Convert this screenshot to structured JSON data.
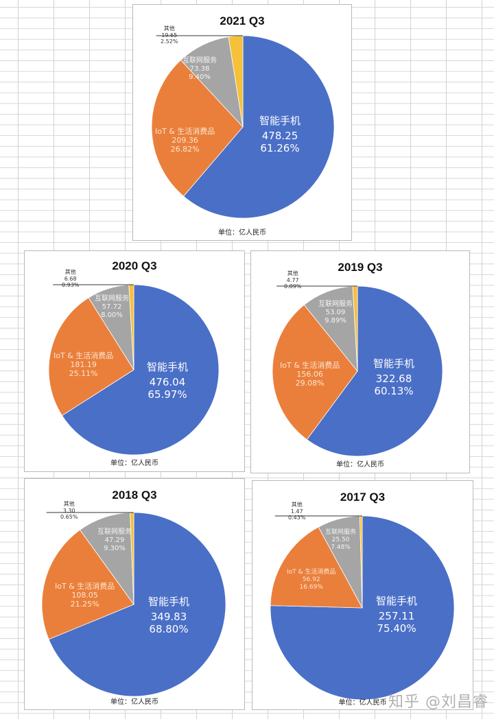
{
  "colors": {
    "smartphone": "#4a6fc7",
    "iot": "#ea7f3b",
    "internet": "#a5a5a5",
    "other": "#f5c03a"
  },
  "unit_label": "单位：亿人民币",
  "watermark": "知乎 @刘昌睿",
  "chart_data": [
    {
      "type": "pie",
      "title": "2021 Q3",
      "unit": "单位：亿人民币",
      "categories": [
        "智能手机",
        "IoT & 生活消费品",
        "互联网服务",
        "其他"
      ],
      "values": [
        478.25,
        209.36,
        73.38,
        19.65
      ],
      "percentages": [
        "61.26%",
        "26.82%",
        "9.40%",
        "2.52%"
      ]
    },
    {
      "type": "pie",
      "title": "2020 Q3",
      "unit": "单位：亿人民币",
      "categories": [
        "智能手机",
        "IoT & 生活消费品",
        "互联网服务",
        "其他"
      ],
      "values": [
        476.04,
        181.19,
        57.72,
        6.68
      ],
      "percentages": [
        "65.97%",
        "25.11%",
        "8.00%",
        "0.93%"
      ]
    },
    {
      "type": "pie",
      "title": "2019 Q3",
      "unit": "单位：亿人民币",
      "categories": [
        "智能手机",
        "IoT & 生活消费品",
        "互联网服务",
        "其他"
      ],
      "values": [
        322.68,
        156.06,
        53.09,
        4.77
      ],
      "percentages": [
        "60.13%",
        "29.08%",
        "9.89%",
        "0.89%"
      ]
    },
    {
      "type": "pie",
      "title": "2018 Q3",
      "unit": "单位：亿人民币",
      "categories": [
        "智能手机",
        "IoT & 生活消费品",
        "互联网服务",
        "其他"
      ],
      "values": [
        349.83,
        108.05,
        47.29,
        3.3
      ],
      "percentages": [
        "68.80%",
        "21.25%",
        "9.30%",
        "0.65%"
      ]
    },
    {
      "type": "pie",
      "title": "2017 Q3",
      "unit": "单位：亿人民币",
      "categories": [
        "智能手机",
        "IoT & 生活消费品",
        "互联网服务",
        "其他"
      ],
      "values": [
        257.11,
        56.92,
        25.5,
        1.47
      ],
      "percentages": [
        "75.40%",
        "16.69%",
        "7.48%",
        "0.43%"
      ]
    }
  ],
  "charts": [
    {
      "title": "2021 Q3",
      "slices": {
        "phone": {
          "label": "智能手机",
          "value": "478.25",
          "pct": "61.26%"
        },
        "iot": {
          "label": "IoT & 生活消费品",
          "value": "209.36",
          "pct": "26.82%"
        },
        "net": {
          "label": "互联网服务",
          "value": "73.38",
          "pct": "9.40%"
        },
        "other": {
          "label": "其他",
          "value": "19.65",
          "pct": "2.52%"
        }
      }
    },
    {
      "title": "2020 Q3",
      "slices": {
        "phone": {
          "label": "智能手机",
          "value": "476.04",
          "pct": "65.97%"
        },
        "iot": {
          "label": "IoT & 生活消费品",
          "value": "181.19",
          "pct": "25.11%"
        },
        "net": {
          "label": "互联网服务",
          "value": "57.72",
          "pct": "8.00%"
        },
        "other": {
          "label": "其他",
          "value": "6.68",
          "pct": "0.93%"
        }
      }
    },
    {
      "title": "2019 Q3",
      "slices": {
        "phone": {
          "label": "智能手机",
          "value": "322.68",
          "pct": "60.13%"
        },
        "iot": {
          "label": "IoT & 生活消费品",
          "value": "156.06",
          "pct": "29.08%"
        },
        "net": {
          "label": "互联网服务",
          "value": "53.09",
          "pct": "9.89%"
        },
        "other": {
          "label": "其他",
          "value": "4.77",
          "pct": "0.89%"
        }
      }
    },
    {
      "title": "2018 Q3",
      "slices": {
        "phone": {
          "label": "智能手机",
          "value": "349.83",
          "pct": "68.80%"
        },
        "iot": {
          "label": "IoT & 生活消费品",
          "value": "108.05",
          "pct": "21.25%"
        },
        "net": {
          "label": "互联网服务",
          "value": "47.29",
          "pct": "9.30%"
        },
        "other": {
          "label": "其他",
          "value": "3.30",
          "pct": "0.65%"
        }
      }
    },
    {
      "title": "2017 Q3",
      "slices": {
        "phone": {
          "label": "智能手机",
          "value": "257.11",
          "pct": "75.40%"
        },
        "iot": {
          "label": "IoT & 生活消费品",
          "value": "56.92",
          "pct": "16.69%"
        },
        "net": {
          "label": "互联网服务",
          "value": "25.50",
          "pct": "7.48%"
        },
        "other": {
          "label": "其他",
          "value": "1.47",
          "pct": "0.43%"
        }
      }
    }
  ]
}
